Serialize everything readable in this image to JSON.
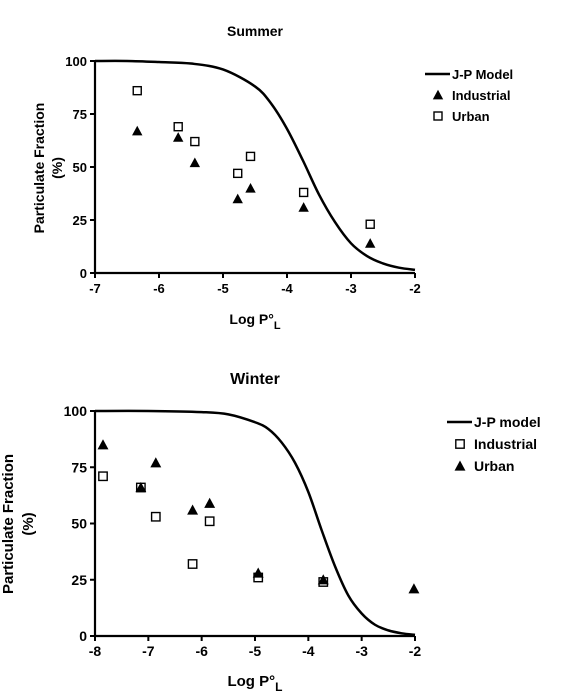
{
  "chart_data": [
    {
      "type": "scatter",
      "title": "Summer",
      "xlabel": "Log P°L",
      "ylabel": "Particulate Fraction (%)",
      "xlim": [
        -7,
        -2
      ],
      "ylim": [
        0,
        100
      ],
      "xticks": [
        -7,
        -6,
        -5,
        -4,
        -3,
        -2
      ],
      "yticks": [
        0,
        25,
        50,
        75,
        100
      ],
      "legend_position": "top-right",
      "series": [
        {
          "name": "J-P Model",
          "kind": "line",
          "x": [
            -7,
            -6.5,
            -6,
            -5.5,
            -5,
            -4.5,
            -4.25,
            -4,
            -3.75,
            -3.5,
            -3.25,
            -3,
            -2.75,
            -2.5,
            -2.25,
            -2
          ],
          "y": [
            100,
            100,
            99.5,
            98.8,
            96,
            88,
            80,
            68,
            53,
            37,
            24,
            14,
            8,
            4.5,
            2.5,
            1.5
          ]
        },
        {
          "name": "Industrial",
          "marker": "filled-triangle",
          "x": [
            -6.34,
            -5.7,
            -5.44,
            -4.77,
            -4.57,
            -3.74,
            -2.7
          ],
          "y": [
            67,
            64,
            52,
            35,
            40,
            31,
            14
          ]
        },
        {
          "name": "Urban",
          "marker": "open-square",
          "x": [
            -6.34,
            -5.7,
            -5.44,
            -4.77,
            -4.57,
            -3.74,
            -2.7
          ],
          "y": [
            86,
            69,
            62,
            47,
            55,
            38,
            23
          ]
        }
      ]
    },
    {
      "type": "scatter",
      "title": "Winter",
      "xlabel": "Log P°L",
      "ylabel": "Particulate Fraction (%)",
      "xlim": [
        -8,
        -2
      ],
      "ylim": [
        0,
        100
      ],
      "xticks": [
        -8,
        -7,
        -6,
        -5,
        -4,
        -3,
        -2
      ],
      "yticks": [
        0,
        25,
        50,
        75,
        100
      ],
      "legend_position": "top-right",
      "series": [
        {
          "name": "J-P model",
          "kind": "line",
          "x": [
            -8,
            -7,
            -6,
            -5.5,
            -5,
            -4.75,
            -4.5,
            -4.25,
            -4,
            -3.75,
            -3.5,
            -3.25,
            -3,
            -2.75,
            -2.5,
            -2.25,
            -2
          ],
          "y": [
            100,
            100,
            99.5,
            98.5,
            95,
            92,
            86,
            77,
            64,
            47,
            31,
            18,
            10,
            5,
            2.5,
            1.2,
            0.5
          ]
        },
        {
          "name": "Industrial",
          "marker": "open-square",
          "x": [
            -7.85,
            -7.14,
            -6.86,
            -6.17,
            -5.85,
            -4.94,
            -3.72
          ],
          "y": [
            71,
            66,
            53,
            32,
            51,
            26,
            24
          ]
        },
        {
          "name": "Urban",
          "marker": "filled-triangle",
          "x": [
            -7.85,
            -7.14,
            -6.86,
            -6.17,
            -5.85,
            -4.94,
            -3.72,
            -2.02
          ],
          "y": [
            85,
            66,
            77,
            56,
            59,
            28,
            25,
            21
          ]
        }
      ]
    }
  ]
}
